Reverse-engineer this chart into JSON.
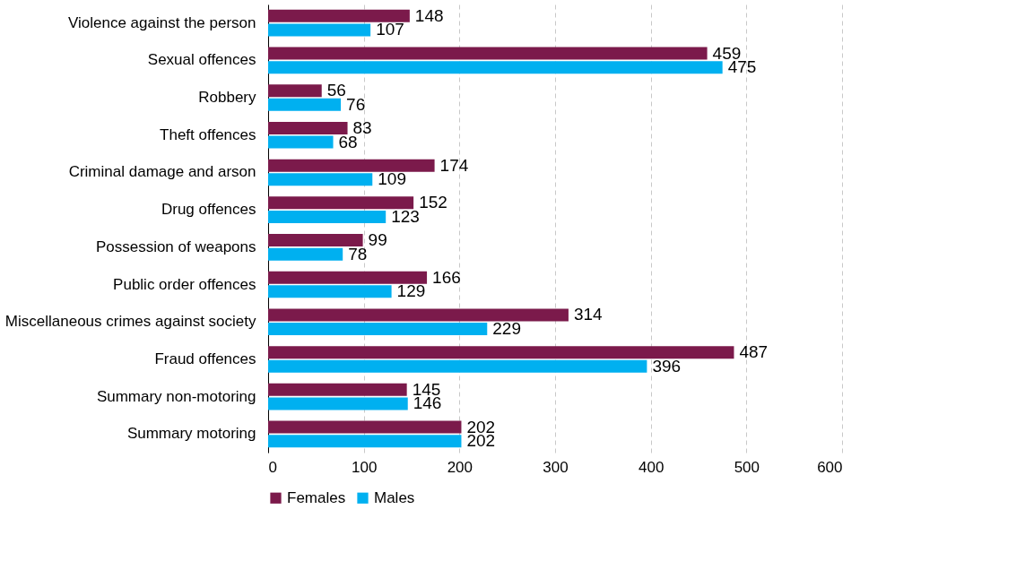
{
  "chart_data": {
    "type": "bar",
    "orientation": "horizontal",
    "categories": [
      "Violence against the person",
      "Sexual offences",
      "Robbery",
      "Theft offences",
      "Criminal damage and arson",
      "Drug offences",
      "Possession of weapons",
      "Public order offences",
      "Miscellaneous crimes against society",
      "Fraud offences",
      "Summary non-motoring",
      "Summary motoring"
    ],
    "series": [
      {
        "name": "Females",
        "color": "#7b1a4b",
        "values": [
          148,
          459,
          56,
          83,
          174,
          152,
          99,
          166,
          314,
          487,
          145,
          202
        ]
      },
      {
        "name": "Males",
        "color": "#00b0f0",
        "values": [
          107,
          475,
          76,
          68,
          109,
          123,
          78,
          129,
          229,
          396,
          146,
          202
        ]
      }
    ],
    "xlim": [
      0,
      600
    ],
    "xticks": [
      0,
      100,
      200,
      300,
      400,
      500,
      600
    ],
    "grid": "x",
    "legend": "bottom",
    "data_labels": true
  }
}
